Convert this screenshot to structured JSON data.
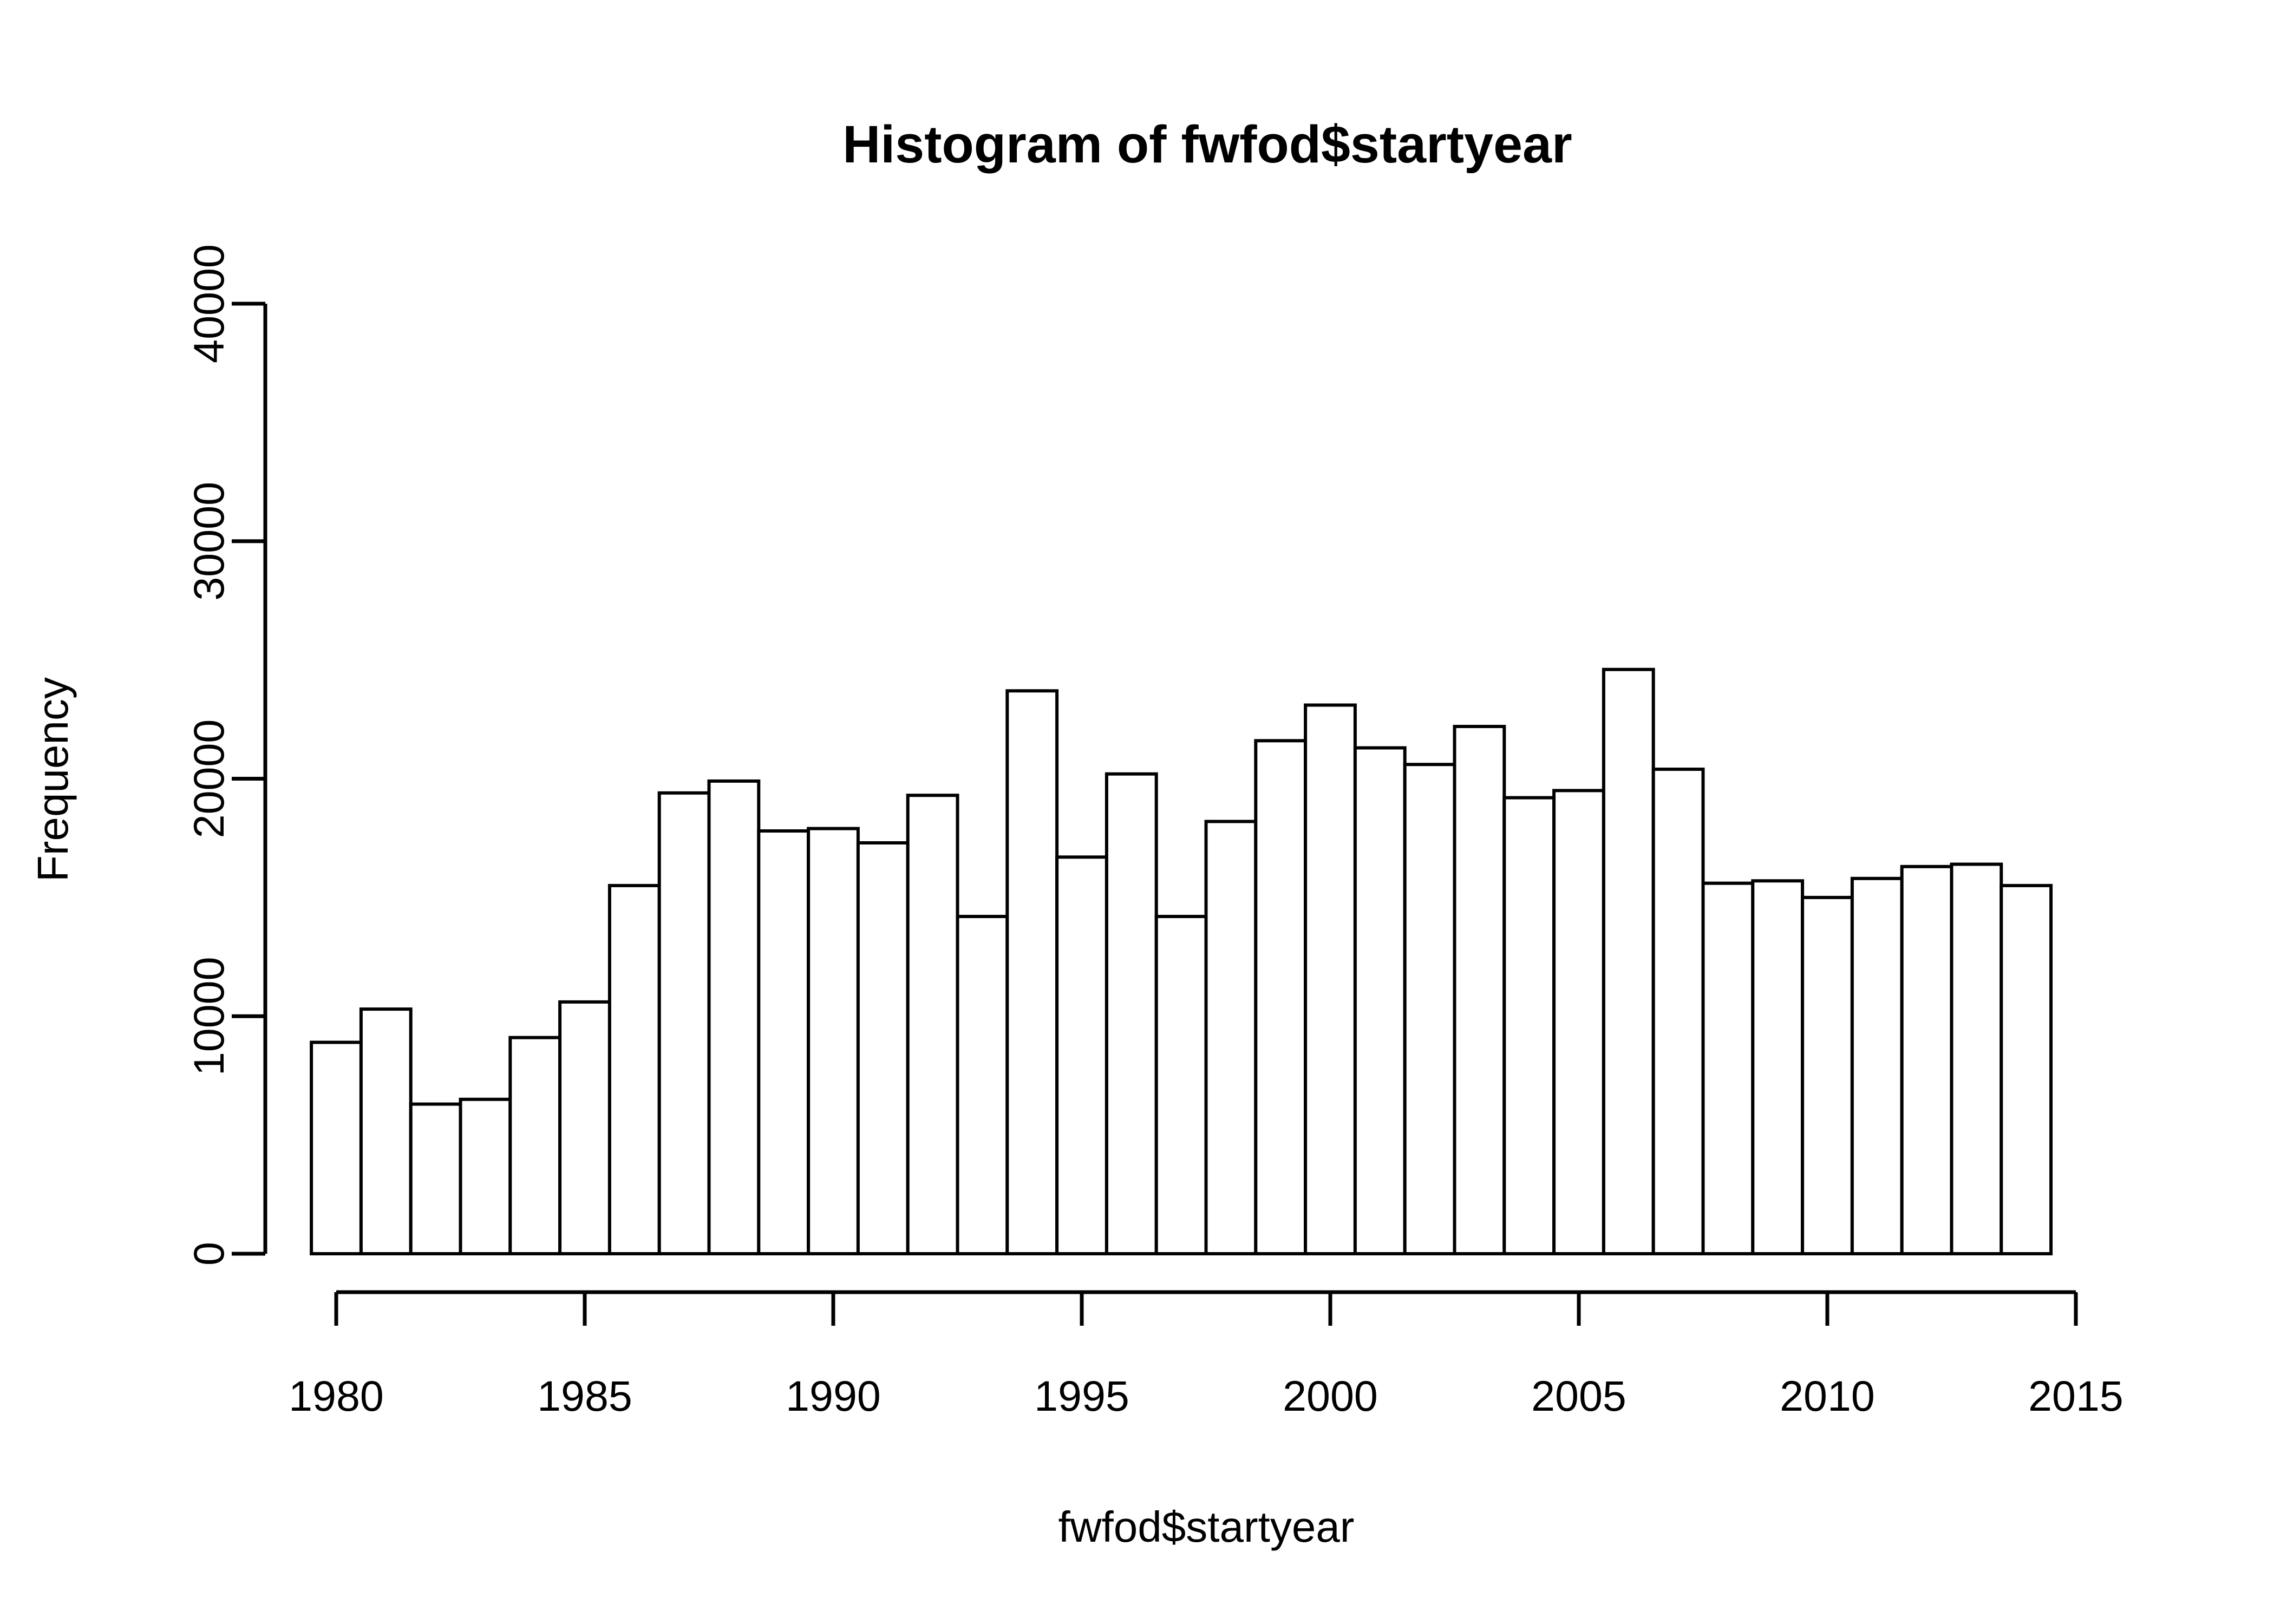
{
  "chart_data": {
    "type": "bar",
    "subtype": "histogram",
    "title": "Histogram of fwfod$startyear",
    "xlabel": "fwfod$startyear",
    "ylabel": "Frequency",
    "categories": [
      1980,
      1981,
      1982,
      1983,
      1984,
      1985,
      1986,
      1987,
      1988,
      1989,
      1990,
      1991,
      1992,
      1993,
      1994,
      1995,
      1996,
      1997,
      1998,
      1999,
      2000,
      2001,
      2002,
      2003,
      2004,
      2005,
      2006,
      2007,
      2008,
      2009,
      2010,
      2011,
      2012,
      2013,
      2014
    ],
    "values": [
      8900,
      10300,
      6300,
      6500,
      9100,
      10600,
      15500,
      19400,
      19900,
      17800,
      17900,
      17300,
      19300,
      14200,
      23700,
      16700,
      20200,
      14200,
      18200,
      21600,
      23100,
      21300,
      20600,
      22200,
      19200,
      19500,
      24600,
      20400,
      15600,
      15700,
      15000,
      15800,
      16300,
      16400,
      15500
    ],
    "bin_width": 1,
    "xlim": [
      1980,
      2015
    ],
    "ylim": [
      0,
      40000
    ],
    "x_ticks": [
      "1980",
      "1985",
      "1990",
      "1995",
      "2000",
      "2005",
      "2010",
      "2015"
    ],
    "y_ticks": [
      "0",
      "10000",
      "20000",
      "30000",
      "40000"
    ],
    "grid": false,
    "legend": null,
    "colors": {
      "background": "#ffffff",
      "bar_fill": "#ffffff",
      "bar_stroke": "#000000",
      "axis": "#000000",
      "text": "#000000"
    }
  }
}
